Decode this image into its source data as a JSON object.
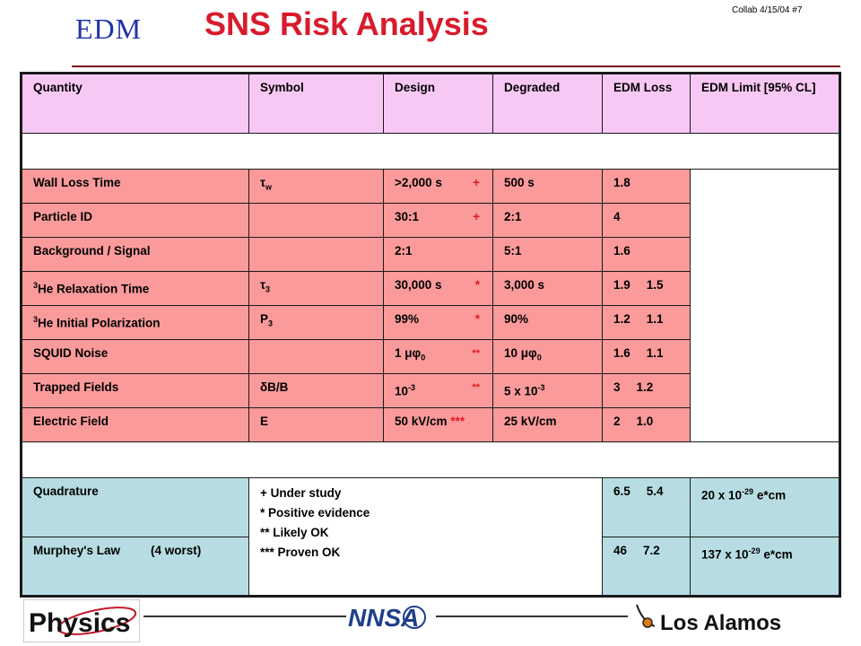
{
  "header": {
    "logo_text": "EDM",
    "title": "SNS Risk Analysis",
    "slide_ref": "Collab 4/15/04  #7"
  },
  "table": {
    "columns": [
      "Quantity",
      "Symbol",
      "Design",
      "Degraded",
      "EDM Loss",
      "EDM Limit [95% CL]"
    ],
    "rows": [
      {
        "quantity": "Wall Loss Time",
        "design": ">2,000 s",
        "design_mark": "+",
        "degraded": "500 s",
        "loss": "1.8"
      },
      {
        "quantity": "Particle ID",
        "design": "30:1",
        "design_mark": "+",
        "degraded": "2:1",
        "loss": "4"
      },
      {
        "quantity": "Background / Signal",
        "design": "2:1",
        "degraded": "5:1",
        "loss": "1.6"
      },
      {
        "quantity": "He Relaxation Time",
        "quantity_pre": "3",
        "design": "30,000 s",
        "design_mark": "*",
        "degraded": "3,000 s",
        "loss": "1.9",
        "loss_b": "1.5"
      },
      {
        "quantity": "He Initial Polarization",
        "quantity_pre": "3",
        "symbol": "P",
        "symbol_sub": "3",
        "design": "99%",
        "design_mark": "*",
        "degraded": "90%",
        "loss": "1.2",
        "loss_b": "1.1"
      },
      {
        "quantity": "SQUID Noise",
        "design": "1 μφ",
        "design_sub": "0",
        "design_mark": "**",
        "degraded": "10 μφ",
        "degraded_sub": "0",
        "loss": "1.6",
        "loss_b": "1.1"
      },
      {
        "quantity": "Trapped Fields",
        "symbol": "δB/B",
        "design": "10",
        "design_sup": "-3",
        "design_mark": "**",
        "degraded": "5 x 10",
        "degraded_sup": "-3",
        "loss": "3",
        "loss_b": "1.2"
      },
      {
        "quantity": "Electric Field",
        "symbol": "E",
        "design": "50 kV/cm",
        "design_mark": "***",
        "degraded": "25 kV/cm",
        "loss": "2",
        "loss_b": "1.0"
      }
    ],
    "tau_w": {
      "base": "τ",
      "sub": "w"
    },
    "tau_3": {
      "base": "τ",
      "sub": "3"
    },
    "quadrature": {
      "label": "Quadrature",
      "loss": "6.5",
      "loss_b": "5.4",
      "limit": "20   x 10",
      "limit_sup": "-29",
      "limit_unit": " e*cm"
    },
    "murphey": {
      "label": "Murphey's Law",
      "note": "(4 worst)",
      "loss": "46",
      "loss_b": "7.2",
      "limit": "137 x 10",
      "limit_sup": "-29",
      "limit_unit": " e*cm"
    },
    "legend": [
      "+  Under study",
      "*   Positive evidence",
      "**  Likely OK",
      "*** Proven OK"
    ]
  },
  "footer": {
    "physics_logo": "Physics",
    "nnsa_logo": "NNSA",
    "lanl_logo": "Los Alamos"
  },
  "colors": {
    "title": "#d81b2c",
    "header_row": "#f8c8f4",
    "risk_rows": "#fa9a9a",
    "summary_rows": "#b7dde2",
    "marks": "#e01a24"
  }
}
